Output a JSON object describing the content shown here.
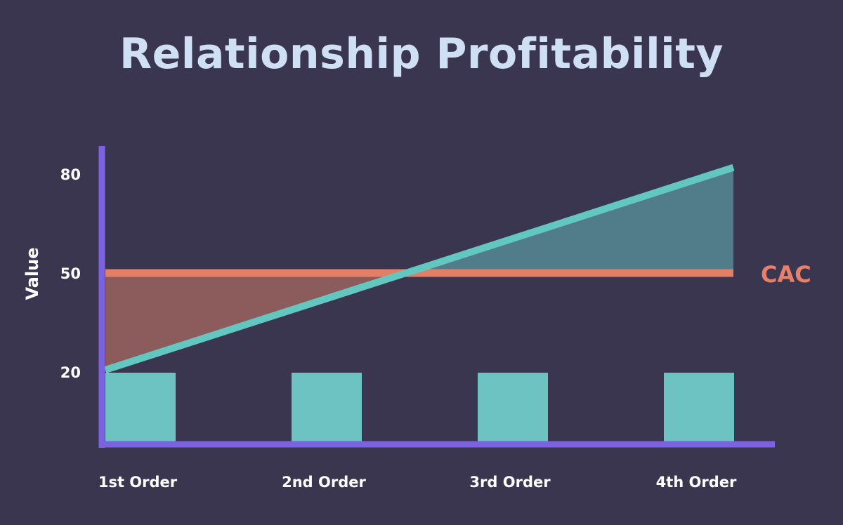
{
  "chart_data": {
    "type": "line",
    "title": "Relationship Profitability",
    "ylabel": "Value",
    "categories": [
      "1st Order",
      "2nd Order",
      "3rd Order",
      "4th Order"
    ],
    "yticks": [
      20,
      50,
      80
    ],
    "bars": {
      "values": [
        20,
        20,
        20,
        20
      ],
      "color": "#6cc3c2"
    },
    "series": [
      {
        "name": "CAC",
        "values": [
          50,
          50,
          50,
          50
        ],
        "color": "#e37f67"
      },
      {
        "name": "",
        "values": [
          20,
          40,
          60,
          82
        ],
        "color": "#63c7c1"
      }
    ],
    "colors": {
      "axis": "#7b62e0",
      "loss_fill": "#8c5c5c",
      "profit_fill": "#517c8a",
      "background": "#3a3650"
    }
  }
}
